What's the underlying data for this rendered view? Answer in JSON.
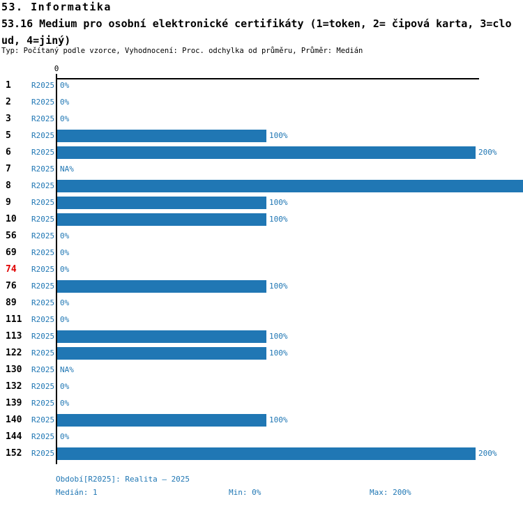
{
  "header": {
    "line1": "53. Informatika",
    "line2": "53.16 Medium pro osobní elektronické certifikáty (1=token, 2= čipová karta, 3=clo",
    "line3": "ud, 4=jiný)",
    "meta": "Typ: Počítaný podle vzorce, Vyhodnocení: Proc. odchylka od průměru, Průměr: Medián"
  },
  "chart_data": {
    "type": "bar",
    "orientation": "horizontal",
    "title": "53.16 Medium pro osobní elektronické certifikáty (1=token, 2= čipová karta, 3=cloud, 4=jiný)",
    "series_label": "R2025",
    "unit": "%",
    "axis": {
      "zero_tick_label": "0",
      "min_pct": 0,
      "max_labeled_pct": 200,
      "grid": false
    },
    "rows": [
      {
        "id": "1",
        "value": 0,
        "label": "0%"
      },
      {
        "id": "2",
        "value": 0,
        "label": "0%"
      },
      {
        "id": "3",
        "value": 0,
        "label": "0%"
      },
      {
        "id": "5",
        "value": 100,
        "label": "100%"
      },
      {
        "id": "6",
        "value": 200,
        "label": "200%"
      },
      {
        "id": "7",
        "value": null,
        "label": "NA%"
      },
      {
        "id": "8",
        "value": null,
        "label": "",
        "clipped": true
      },
      {
        "id": "9",
        "value": 100,
        "label": "100%"
      },
      {
        "id": "10",
        "value": 100,
        "label": "100%"
      },
      {
        "id": "56",
        "value": 0,
        "label": "0%"
      },
      {
        "id": "69",
        "value": 0,
        "label": "0%"
      },
      {
        "id": "74",
        "value": 0,
        "label": "0%",
        "highlight": true
      },
      {
        "id": "76",
        "value": 100,
        "label": "100%"
      },
      {
        "id": "89",
        "value": 0,
        "label": "0%"
      },
      {
        "id": "111",
        "value": 0,
        "label": "0%"
      },
      {
        "id": "113",
        "value": 100,
        "label": "100%"
      },
      {
        "id": "122",
        "value": 100,
        "label": "100%"
      },
      {
        "id": "130",
        "value": null,
        "label": "NA%"
      },
      {
        "id": "132",
        "value": 0,
        "label": "0%"
      },
      {
        "id": "139",
        "value": 0,
        "label": "0%"
      },
      {
        "id": "140",
        "value": 100,
        "label": "100%"
      },
      {
        "id": "144",
        "value": 0,
        "label": "0%"
      },
      {
        "id": "152",
        "value": 200,
        "label": "200%"
      }
    ],
    "colors": {
      "bar": "#2077b4",
      "value_text": "#2077b4",
      "series_text": "#2077b4",
      "id_text": "#000000",
      "highlight_id_text": "#e00000",
      "axis": "#000000"
    }
  },
  "footer": {
    "period": "Období[R2025]: Realita – 2025",
    "median": "Medián: 1",
    "min": "Min: 0%",
    "max": "Max: 200%"
  }
}
